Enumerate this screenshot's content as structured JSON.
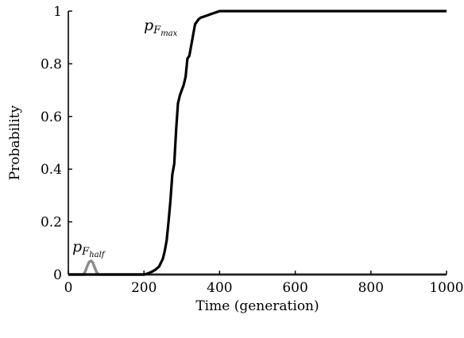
{
  "chart_data": {
    "type": "line",
    "xlabel": "Time (generation)",
    "ylabel": "Probability",
    "xlim": [
      0,
      1000
    ],
    "ylim": [
      0,
      1
    ],
    "x_ticks": [
      0,
      200,
      400,
      600,
      800,
      1000
    ],
    "y_ticks": [
      0,
      0.2,
      0.4,
      0.6,
      0.8,
      1
    ],
    "grid": false,
    "legend": "none",
    "series": [
      {
        "label_main": "p",
        "label_sub": "F",
        "label_subsub": "max",
        "color": "#000000",
        "x": [
          0,
          200,
          210,
          220,
          230,
          240,
          250,
          255,
          260,
          265,
          270,
          275,
          280,
          285,
          290,
          295,
          300,
          305,
          310,
          315,
          320,
          325,
          330,
          335,
          340,
          345,
          350,
          360,
          370,
          380,
          390,
          400,
          420,
          450,
          500,
          600,
          700,
          800,
          900,
          1000
        ],
        "y": [
          0,
          0,
          0.004,
          0.01,
          0.018,
          0.03,
          0.06,
          0.09,
          0.13,
          0.2,
          0.28,
          0.38,
          0.42,
          0.55,
          0.65,
          0.68,
          0.7,
          0.72,
          0.75,
          0.82,
          0.83,
          0.87,
          0.91,
          0.95,
          0.96,
          0.97,
          0.975,
          0.98,
          0.985,
          0.99,
          0.995,
          1,
          1,
          1,
          1,
          1,
          1,
          1,
          1,
          1
        ]
      },
      {
        "label_main": "p",
        "label_sub": "F",
        "label_subsub": "half",
        "color": "#8c8c8c",
        "x": [
          0,
          40,
          45,
          50,
          55,
          60,
          65,
          70,
          75,
          80,
          200,
          400,
          600,
          800,
          1000
        ],
        "y": [
          0,
          0,
          0.012,
          0.032,
          0.048,
          0.052,
          0.045,
          0.025,
          0.008,
          0,
          0,
          0,
          0,
          0,
          0
        ]
      }
    ]
  }
}
